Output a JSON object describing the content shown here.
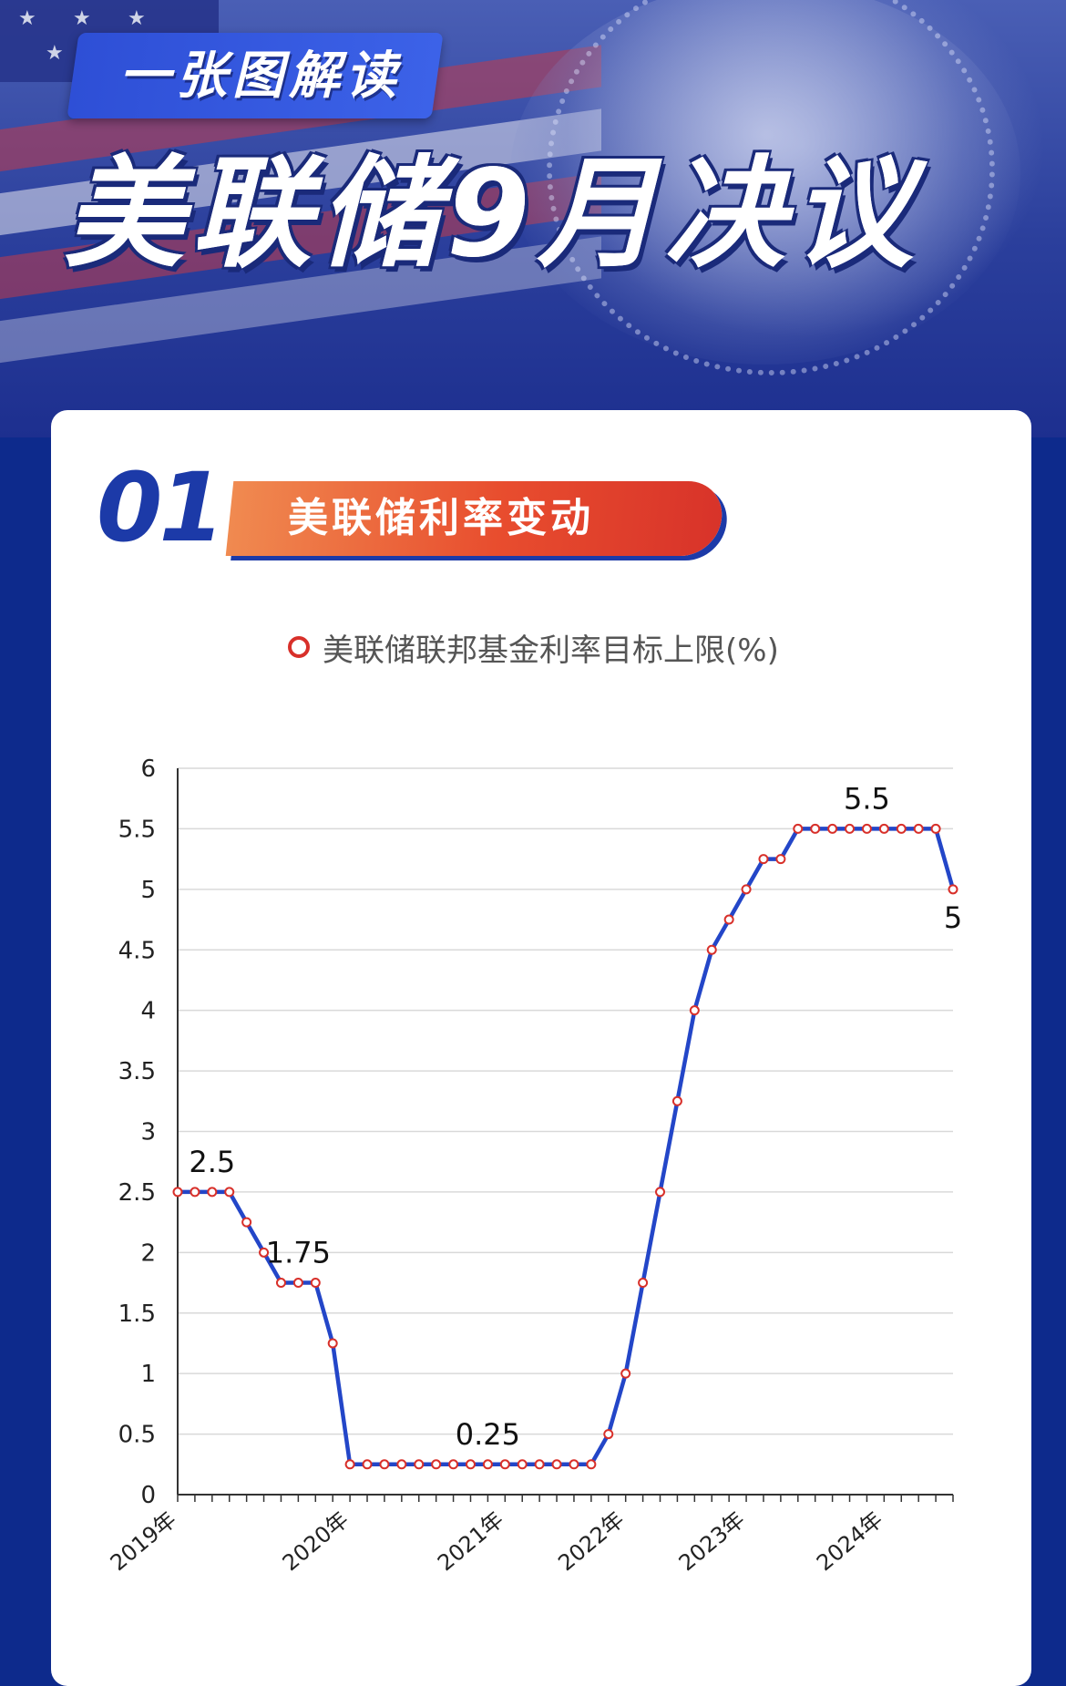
{
  "header": {
    "tag": "一张图解读",
    "title": "美联储9月决议"
  },
  "section": {
    "number": "01",
    "title": "美联储利率变动"
  },
  "colors": {
    "navy": "#0d2a8c",
    "line": "#2346c8",
    "marker": "#d8302a",
    "accent_orange": "#e84d2e"
  },
  "chart_data": {
    "type": "line",
    "title": "",
    "xlabel": "",
    "ylabel": "",
    "legend": "top-center",
    "grid": true,
    "ylim": [
      0,
      6
    ],
    "yticks": [
      "0",
      "0.5",
      "1",
      "1.5",
      "2",
      "2.5",
      "3",
      "3.5",
      "4",
      "4.5",
      "5",
      "5.5",
      "6"
    ],
    "xticks": [
      {
        "label": "2019年",
        "index": 0
      },
      {
        "label": "2020年",
        "index": 10
      },
      {
        "label": "2021年",
        "index": 19
      },
      {
        "label": "2022年",
        "index": 26
      },
      {
        "label": "2023年",
        "index": 33
      },
      {
        "label": "2024年",
        "index": 41
      }
    ],
    "series": [
      {
        "name": "美联储联邦基金利率目标上限(%)",
        "values": [
          2.5,
          2.5,
          2.5,
          2.5,
          2.25,
          2,
          1.75,
          1.75,
          1.75,
          1.25,
          0.25,
          0.25,
          0.25,
          0.25,
          0.25,
          0.25,
          0.25,
          0.25,
          0.25,
          0.25,
          0.25,
          0.25,
          0.25,
          0.25,
          0.25,
          0.5,
          1,
          1.75,
          2.5,
          3.25,
          4,
          4.5,
          4.75,
          5,
          5.25,
          5.25,
          5.5,
          5.5,
          5.5,
          5.5,
          5.5,
          5.5,
          5.5,
          5.5,
          5.5,
          5
        ]
      }
    ],
    "annotations": [
      {
        "label": "2.5",
        "index": 2,
        "value": 2.5
      },
      {
        "label": "1.75",
        "index": 7,
        "value": 1.75
      },
      {
        "label": "0.25",
        "index": 18,
        "value": 0.25
      },
      {
        "label": "5.5",
        "index": 40,
        "value": 5.5
      },
      {
        "label": "5",
        "index": 45,
        "value": 5
      }
    ]
  }
}
